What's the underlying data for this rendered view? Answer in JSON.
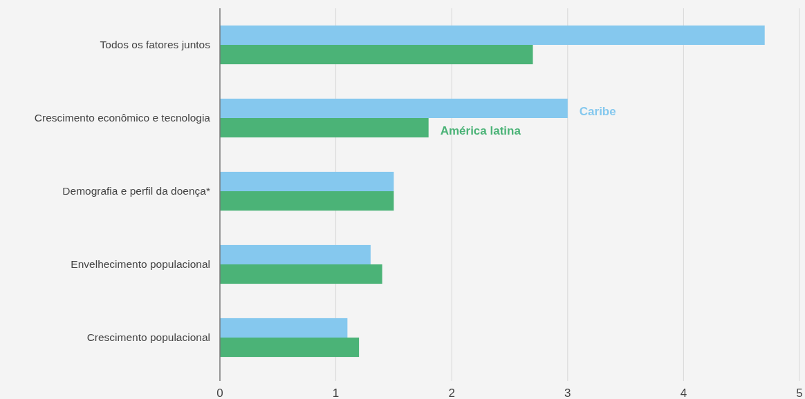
{
  "chart_data": {
    "type": "bar",
    "orientation": "horizontal",
    "categories": [
      "Todos os fatores juntos",
      "Crescimento econômico e tecnologia",
      "Demografia e perfil da doença*",
      "Envelhecimento populacional",
      "Crescimento populacional"
    ],
    "series": [
      {
        "name": "Caribe",
        "color": "#85c8ee",
        "values": [
          4.7,
          3.0,
          1.5,
          1.3,
          1.1
        ]
      },
      {
        "name": "América latina",
        "color": "#4bb377",
        "values": [
          2.7,
          1.8,
          1.5,
          1.4,
          1.2
        ]
      }
    ],
    "xlim": [
      0,
      5
    ],
    "xticks": [
      0,
      1,
      2,
      3,
      4,
      5
    ],
    "grid": "x",
    "legend": false
  }
}
